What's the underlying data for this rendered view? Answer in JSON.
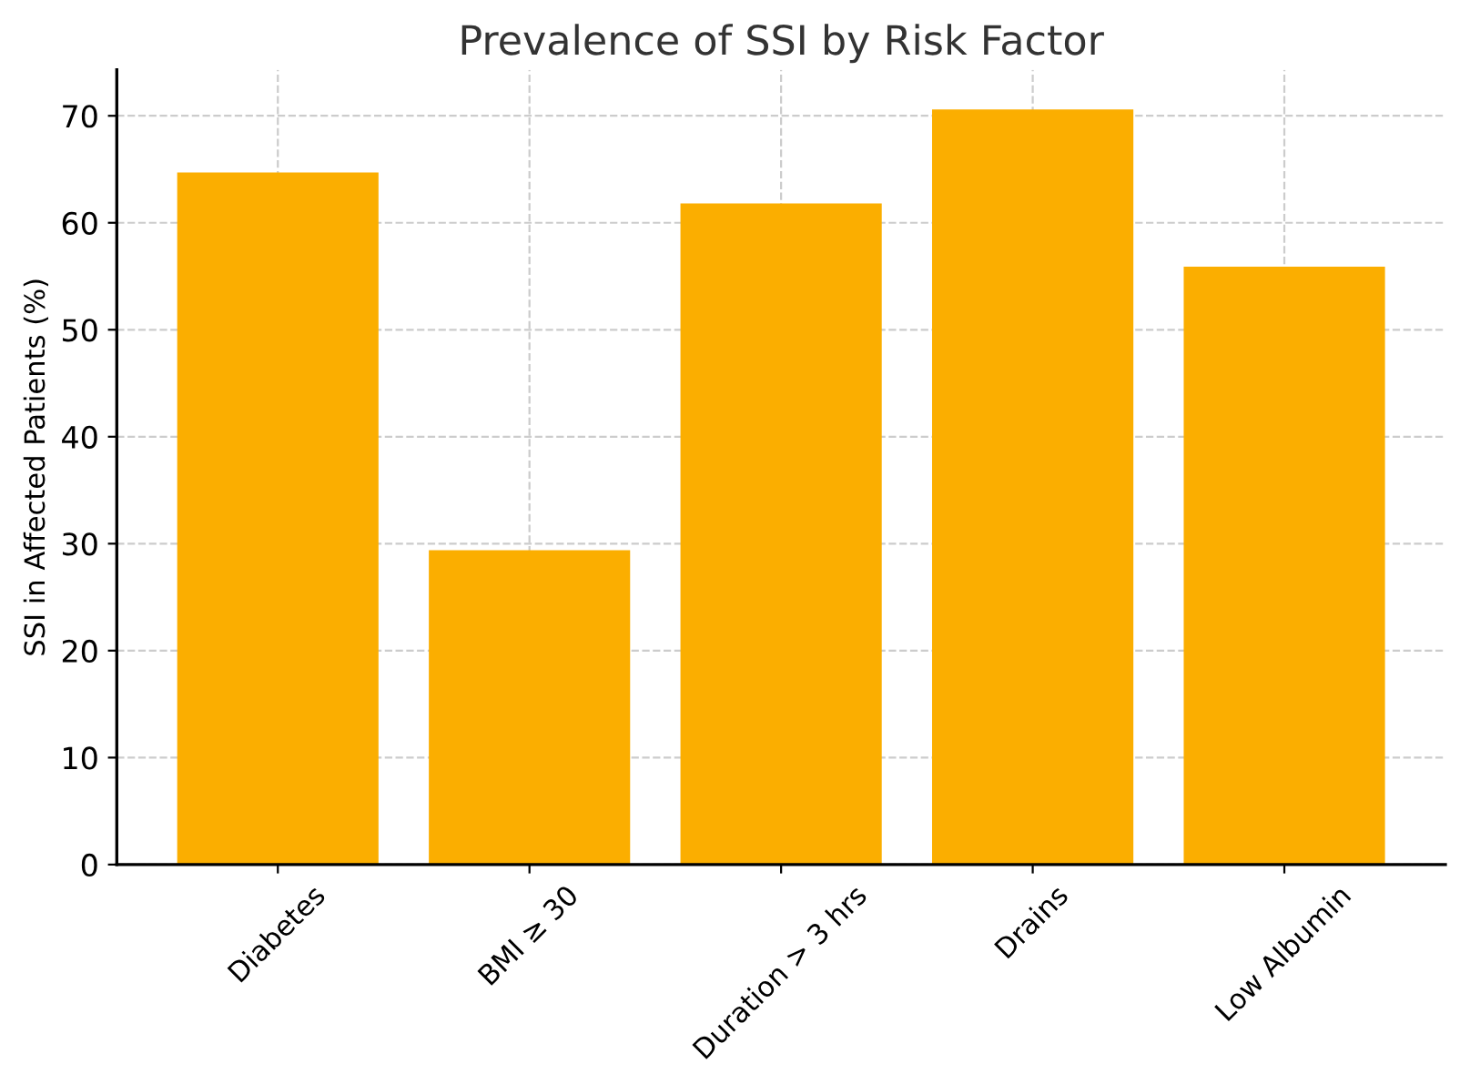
{
  "chart_data": {
    "type": "bar",
    "title": "Prevalence of SSI by Risk Factor",
    "ylabel": "SSI in Affected Patients (%)",
    "categories": [
      "Diabetes",
      "BMI ≥ 30",
      "Duration > 3 hrs",
      "Drains",
      "Low Albumin"
    ],
    "values": [
      64.7,
      29.4,
      61.8,
      70.6,
      55.9
    ],
    "color": "#fbae00",
    "ylim": [
      0,
      74.3
    ],
    "yticks": [
      0,
      10,
      20,
      30,
      40,
      50,
      60,
      70
    ],
    "grid": true
  }
}
